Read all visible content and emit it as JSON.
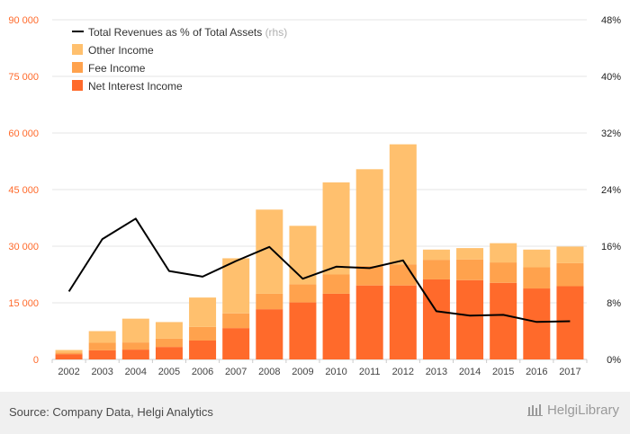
{
  "chart_data": {
    "type": "bar",
    "stacked": true,
    "categories": [
      "2002",
      "2003",
      "2004",
      "2005",
      "2006",
      "2007",
      "2008",
      "2009",
      "2010",
      "2011",
      "2012",
      "2013",
      "2014",
      "2015",
      "2016",
      "2017"
    ],
    "series": [
      {
        "name": "Net Interest Income",
        "color": "#ff6a2b",
        "values": [
          1400,
          2400,
          2600,
          3300,
          5000,
          8300,
          13300,
          15100,
          17400,
          19600,
          19600,
          21200,
          21000,
          20300,
          18800,
          19400
        ]
      },
      {
        "name": "Fee Income",
        "color": "#ffa24d",
        "values": [
          400,
          2000,
          1900,
          2200,
          3600,
          3900,
          4100,
          4800,
          5100,
          5200,
          5600,
          5200,
          5500,
          5400,
          5600,
          6100
        ]
      },
      {
        "name": "Other Income",
        "color": "#ffc06e",
        "values": [
          700,
          3100,
          6300,
          4400,
          7800,
          14600,
          22300,
          15500,
          24400,
          25600,
          31800,
          2700,
          3000,
          5100,
          4700,
          4400
        ]
      }
    ],
    "line_series": {
      "name": "Total Revenues as % of Total Assets",
      "suffix": "(rhs)",
      "color": "#000000",
      "values": [
        9.6,
        17.0,
        19.9,
        12.5,
        11.7,
        13.9,
        15.9,
        11.4,
        13.1,
        12.9,
        14.0,
        6.8,
        6.2,
        6.3,
        5.3,
        5.4
      ]
    },
    "y_left": {
      "min": 0,
      "max": 90000,
      "ticks": [
        "0",
        "15 000",
        "30 000",
        "45 000",
        "60 000",
        "75 000",
        "90 000"
      ],
      "tick_values": [
        0,
        15000,
        30000,
        45000,
        60000,
        75000,
        90000
      ],
      "color": "#ff6a2b"
    },
    "y_right": {
      "min": 0,
      "max": 48,
      "ticks": [
        "0%",
        "8%",
        "16%",
        "24%",
        "32%",
        "40%",
        "48%"
      ],
      "tick_values": [
        0,
        8,
        16,
        24,
        32,
        40,
        48
      ]
    },
    "grid": true,
    "legend_position": "top-left"
  },
  "footer": {
    "source": "Source: Company Data, Helgi Analytics",
    "brand": "HelgiLibrary"
  }
}
